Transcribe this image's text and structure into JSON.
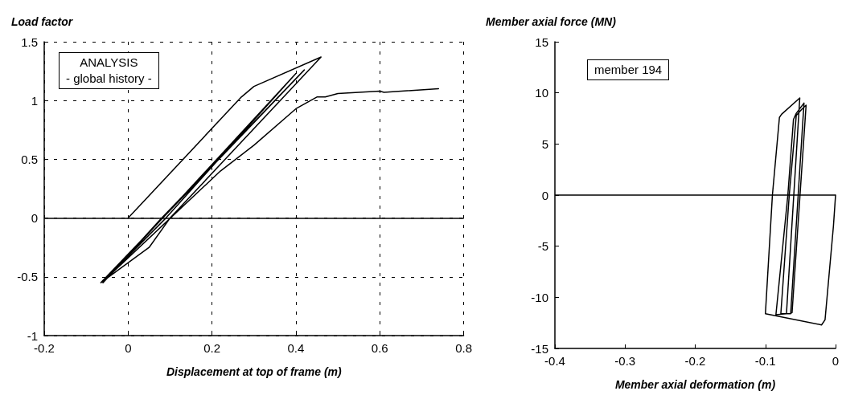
{
  "chart_data": [
    {
      "type": "line",
      "xlabel": "Displacement at top of frame (m)",
      "ylabel": "Load factor",
      "annotations": [
        "ANALYSIS",
        "- global history -"
      ],
      "series": [
        {
          "color": "#000000",
          "x": [
            0,
            0.27,
            0.3,
            0.46,
            0.1,
            0.05,
            -0.065,
            0.42,
            0.08,
            -0.06,
            0.4,
            0.09,
            -0.06,
            0.22,
            0.3,
            0.4,
            0.45,
            0.47,
            0.5,
            0.6,
            0.61,
            0.74
          ],
          "values": [
            0,
            1.03,
            1.12,
            1.37,
            0,
            -0.25,
            -0.55,
            1.26,
            0,
            -0.55,
            1.23,
            0,
            -0.54,
            0.4,
            0.62,
            0.93,
            1.03,
            1.03,
            1.06,
            1.08,
            1.07,
            1.1
          ]
        }
      ],
      "xlim": [
        -0.2,
        0.8
      ],
      "xticks": [
        -0.2,
        0,
        0.2,
        0.4,
        0.6,
        0.8
      ],
      "ylim": [
        -1,
        1.5
      ],
      "yticks": [
        -1,
        -0.5,
        0,
        0.5,
        1,
        1.5
      ],
      "grid": true,
      "marker": "none",
      "line_style": "solid",
      "ref_lines": [
        {
          "axis": "y",
          "value": 0,
          "color": "#000000",
          "line_style": "solid"
        }
      ]
    },
    {
      "type": "line",
      "xlabel": "Member axial deformation (m)",
      "ylabel": "Member axial force (MN)",
      "annotations": [
        "member 194"
      ],
      "series": [
        {
          "color": "#000000",
          "x": [
            0,
            -0.003,
            -0.015,
            -0.02,
            -0.1,
            -0.09,
            -0.08,
            -0.077,
            -0.051,
            -0.07,
            -0.085,
            -0.068,
            -0.06,
            -0.056,
            -0.045,
            -0.064,
            -0.078,
            -0.066,
            -0.056,
            -0.048,
            -0.042,
            -0.062,
            -0.065
          ],
          "values": [
            0,
            -3,
            -12.2,
            -12.7,
            -11.6,
            0,
            7.6,
            7.9,
            9.5,
            -11.6,
            -11.7,
            0,
            7.4,
            8,
            9,
            -11.6,
            -11.6,
            0,
            7.8,
            8.4,
            8.8,
            -11.5,
            -11.6
          ]
        }
      ],
      "xlim": [
        -0.4,
        0
      ],
      "xticks": [
        -0.4,
        -0.3,
        -0.2,
        -0.1,
        0
      ],
      "ylim": [
        -15,
        15
      ],
      "yticks": [
        -15,
        -10,
        -5,
        0,
        5,
        10,
        15
      ],
      "grid": false,
      "marker": "none",
      "line_style": "solid",
      "ref_lines": [
        {
          "axis": "y",
          "value": 0,
          "color": "#000000",
          "line_style": "solid"
        }
      ]
    }
  ]
}
